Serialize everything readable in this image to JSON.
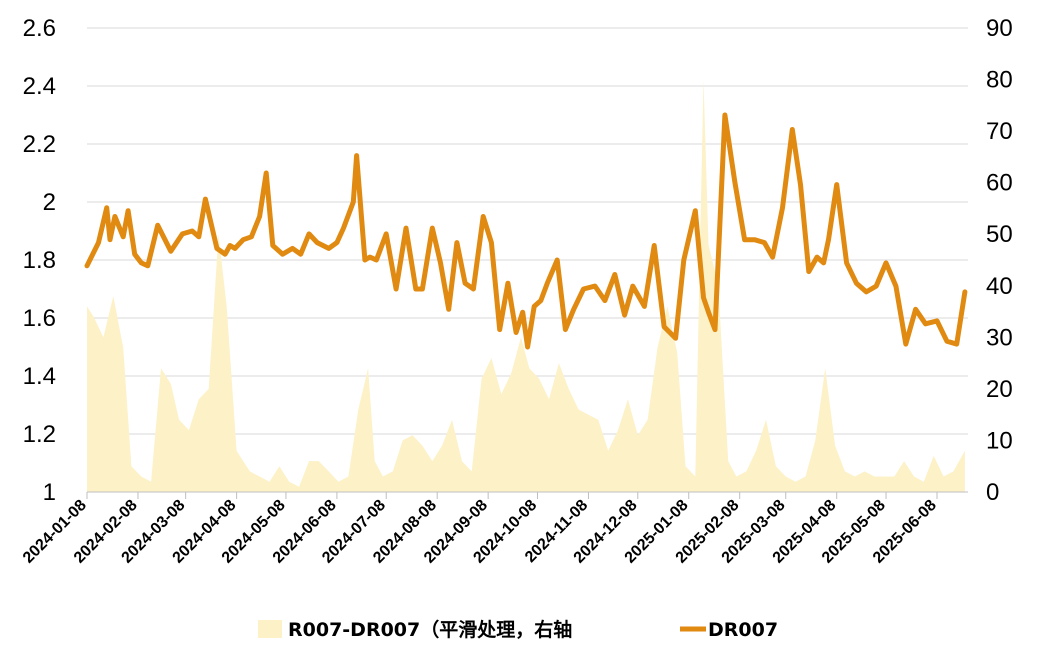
{
  "chart_data": {
    "type": "line+area",
    "legend": [
      {
        "name": "R007-DR007（平滑处理，右轴",
        "kind": "area",
        "color": "#FDF1C8"
      },
      {
        "name": "DR007",
        "kind": "line",
        "color": "#E08A12"
      }
    ],
    "left_axis": {
      "min": 1,
      "max": 2.6,
      "ticks": [
        "1",
        "1.2",
        "1.4",
        "1.6",
        "1.8",
        "2",
        "2.2",
        "2.4",
        "2.6"
      ]
    },
    "right_axis": {
      "min": 0,
      "max": 90,
      "ticks": [
        "0",
        "10",
        "20",
        "30",
        "40",
        "50",
        "60",
        "70",
        "80",
        "90"
      ]
    },
    "x_ticks": [
      "2024-01-08",
      "2024-02-08",
      "2024-03-08",
      "2024-04-08",
      "2024-05-08",
      "2024-06-08",
      "2024-07-08",
      "2024-08-08",
      "2024-09-08",
      "2024-10-08",
      "2024-11-08",
      "2024-12-08",
      "2025-01-08",
      "2025-02-08",
      "2025-03-08",
      "2025-04-08",
      "2025-05-08",
      "2025-06-08"
    ],
    "grid": "horizontal",
    "legend_position": "bottom",
    "series": [
      {
        "name": "DR007",
        "axis": "left",
        "x": [
          "2024-01-08",
          "2024-01-15",
          "2024-01-20",
          "2024-01-22",
          "2024-01-25",
          "2024-01-30",
          "2024-02-02",
          "2024-02-06",
          "2024-02-10",
          "2024-02-14",
          "2024-02-20",
          "2024-02-28",
          "2024-03-06",
          "2024-03-12",
          "2024-03-16",
          "2024-03-20",
          "2024-03-27",
          "2024-04-01",
          "2024-04-04",
          "2024-04-07",
          "2024-04-12",
          "2024-04-17",
          "2024-04-22",
          "2024-04-26",
          "2024-04-30",
          "2024-05-06",
          "2024-05-12",
          "2024-05-17",
          "2024-05-22",
          "2024-05-27",
          "2024-06-03",
          "2024-06-08",
          "2024-06-12",
          "2024-06-18",
          "2024-06-20",
          "2024-06-25",
          "2024-06-28",
          "2024-07-02",
          "2024-07-08",
          "2024-07-14",
          "2024-07-20",
          "2024-07-26",
          "2024-07-30",
          "2024-08-05",
          "2024-08-10",
          "2024-08-15",
          "2024-08-20",
          "2024-08-25",
          "2024-08-30",
          "2024-09-05",
          "2024-09-10",
          "2024-09-15",
          "2024-09-20",
          "2024-09-25",
          "2024-09-29",
          "2024-10-02",
          "2024-10-06",
          "2024-10-10",
          "2024-10-14",
          "2024-10-20",
          "2024-10-25",
          "2024-10-30",
          "2024-11-05",
          "2024-11-12",
          "2024-11-18",
          "2024-11-24",
          "2024-11-30",
          "2024-12-05",
          "2024-12-12",
          "2024-12-18",
          "2024-12-24",
          "2024-12-31",
          "2025-01-05",
          "2025-01-12",
          "2025-01-17",
          "2025-01-20",
          "2025-01-24",
          "2025-01-30",
          "2025-02-05",
          "2025-02-11",
          "2025-02-17",
          "2025-02-23",
          "2025-02-28",
          "2025-03-06",
          "2025-03-12",
          "2025-03-17",
          "2025-03-22",
          "2025-03-27",
          "2025-03-31",
          "2025-04-03",
          "2025-04-08",
          "2025-04-14",
          "2025-04-20",
          "2025-04-26",
          "2025-05-02",
          "2025-05-08",
          "2025-05-14",
          "2025-05-20",
          "2025-05-26",
          "2025-06-01",
          "2025-06-08",
          "2025-06-14",
          "2025-06-20",
          "2025-06-25"
        ],
        "values": [
          1.78,
          1.86,
          1.98,
          1.87,
          1.95,
          1.88,
          1.97,
          1.82,
          1.79,
          1.78,
          1.92,
          1.83,
          1.89,
          1.9,
          1.88,
          2.01,
          1.84,
          1.82,
          1.85,
          1.84,
          1.87,
          1.88,
          1.95,
          2.1,
          1.85,
          1.82,
          1.84,
          1.82,
          1.89,
          1.86,
          1.84,
          1.86,
          1.91,
          2.0,
          2.16,
          1.8,
          1.81,
          1.8,
          1.89,
          1.7,
          1.91,
          1.7,
          1.7,
          1.91,
          1.79,
          1.63,
          1.86,
          1.72,
          1.7,
          1.95,
          1.86,
          1.56,
          1.72,
          1.55,
          1.62,
          1.5,
          1.64,
          1.66,
          1.72,
          1.8,
          1.56,
          1.63,
          1.7,
          1.71,
          1.66,
          1.75,
          1.61,
          1.71,
          1.64,
          1.85,
          1.57,
          1.53,
          1.8,
          1.97,
          1.67,
          1.62,
          1.56,
          2.3,
          2.07,
          1.87,
          1.87,
          1.86,
          1.81,
          1.98,
          2.25,
          2.06,
          1.76,
          1.81,
          1.79,
          1.87,
          2.06,
          1.79,
          1.72,
          1.69,
          1.71,
          1.79,
          1.71,
          1.51,
          1.63,
          1.58,
          1.59,
          1.52,
          1.51,
          1.69
        ]
      },
      {
        "name": "R007-DR007（平滑处理，右轴",
        "axis": "right",
        "x": [
          "2024-01-08",
          "2024-01-12",
          "2024-01-18",
          "2024-01-24",
          "2024-01-30",
          "2024-02-04",
          "2024-02-10",
          "2024-02-16",
          "2024-02-22",
          "2024-02-28",
          "2024-03-04",
          "2024-03-10",
          "2024-03-16",
          "2024-03-22",
          "2024-03-28",
          "2024-04-02",
          "2024-04-08",
          "2024-04-12",
          "2024-04-16",
          "2024-04-22",
          "2024-04-28",
          "2024-05-04",
          "2024-05-10",
          "2024-05-16",
          "2024-05-22",
          "2024-05-28",
          "2024-06-03",
          "2024-06-09",
          "2024-06-15",
          "2024-06-21",
          "2024-06-27",
          "2024-07-01",
          "2024-07-06",
          "2024-07-12",
          "2024-07-18",
          "2024-07-24",
          "2024-07-30",
          "2024-08-05",
          "2024-08-11",
          "2024-08-17",
          "2024-08-23",
          "2024-08-29",
          "2024-09-04",
          "2024-09-10",
          "2024-09-16",
          "2024-09-22",
          "2024-09-28",
          "2024-10-03",
          "2024-10-09",
          "2024-10-15",
          "2024-10-21",
          "2024-10-27",
          "2024-11-02",
          "2024-11-08",
          "2024-11-14",
          "2024-11-20",
          "2024-11-26",
          "2024-12-02",
          "2024-12-08",
          "2024-12-14",
          "2024-12-20",
          "2024-12-26",
          "2025-01-01",
          "2025-01-06",
          "2025-01-12",
          "2025-01-17",
          "2025-01-20",
          "2025-01-26",
          "2025-02-01",
          "2025-02-06",
          "2025-02-12",
          "2025-02-18",
          "2025-02-24",
          "2025-03-02",
          "2025-03-08",
          "2025-03-14",
          "2025-03-20",
          "2025-03-26",
          "2025-04-01",
          "2025-04-07",
          "2025-04-13",
          "2025-04-19",
          "2025-04-25",
          "2025-05-01",
          "2025-05-07",
          "2025-05-13",
          "2025-05-19",
          "2025-05-25",
          "2025-05-31",
          "2025-06-06",
          "2025-06-12",
          "2025-06-18",
          "2025-06-25"
        ],
        "values": [
          36,
          34,
          30,
          38,
          28,
          5,
          3,
          2,
          24,
          21,
          14,
          12,
          18,
          20,
          50,
          36,
          8,
          6,
          4,
          3,
          2,
          5,
          2,
          1,
          6,
          6,
          4,
          2,
          3,
          16,
          24,
          6,
          3,
          4,
          10,
          11,
          9,
          6,
          9,
          14,
          6,
          4,
          22,
          26,
          19,
          23,
          30,
          24,
          22,
          18,
          25,
          20,
          16,
          15,
          14,
          8,
          12,
          18,
          11,
          14,
          28,
          36,
          27,
          5,
          3,
          80,
          48,
          40,
          6,
          3,
          4,
          8,
          14,
          5,
          3,
          2,
          3,
          10,
          24,
          9,
          4,
          3,
          4,
          3,
          3,
          3,
          6,
          3,
          2,
          7,
          3,
          4,
          8
        ]
      }
    ]
  }
}
